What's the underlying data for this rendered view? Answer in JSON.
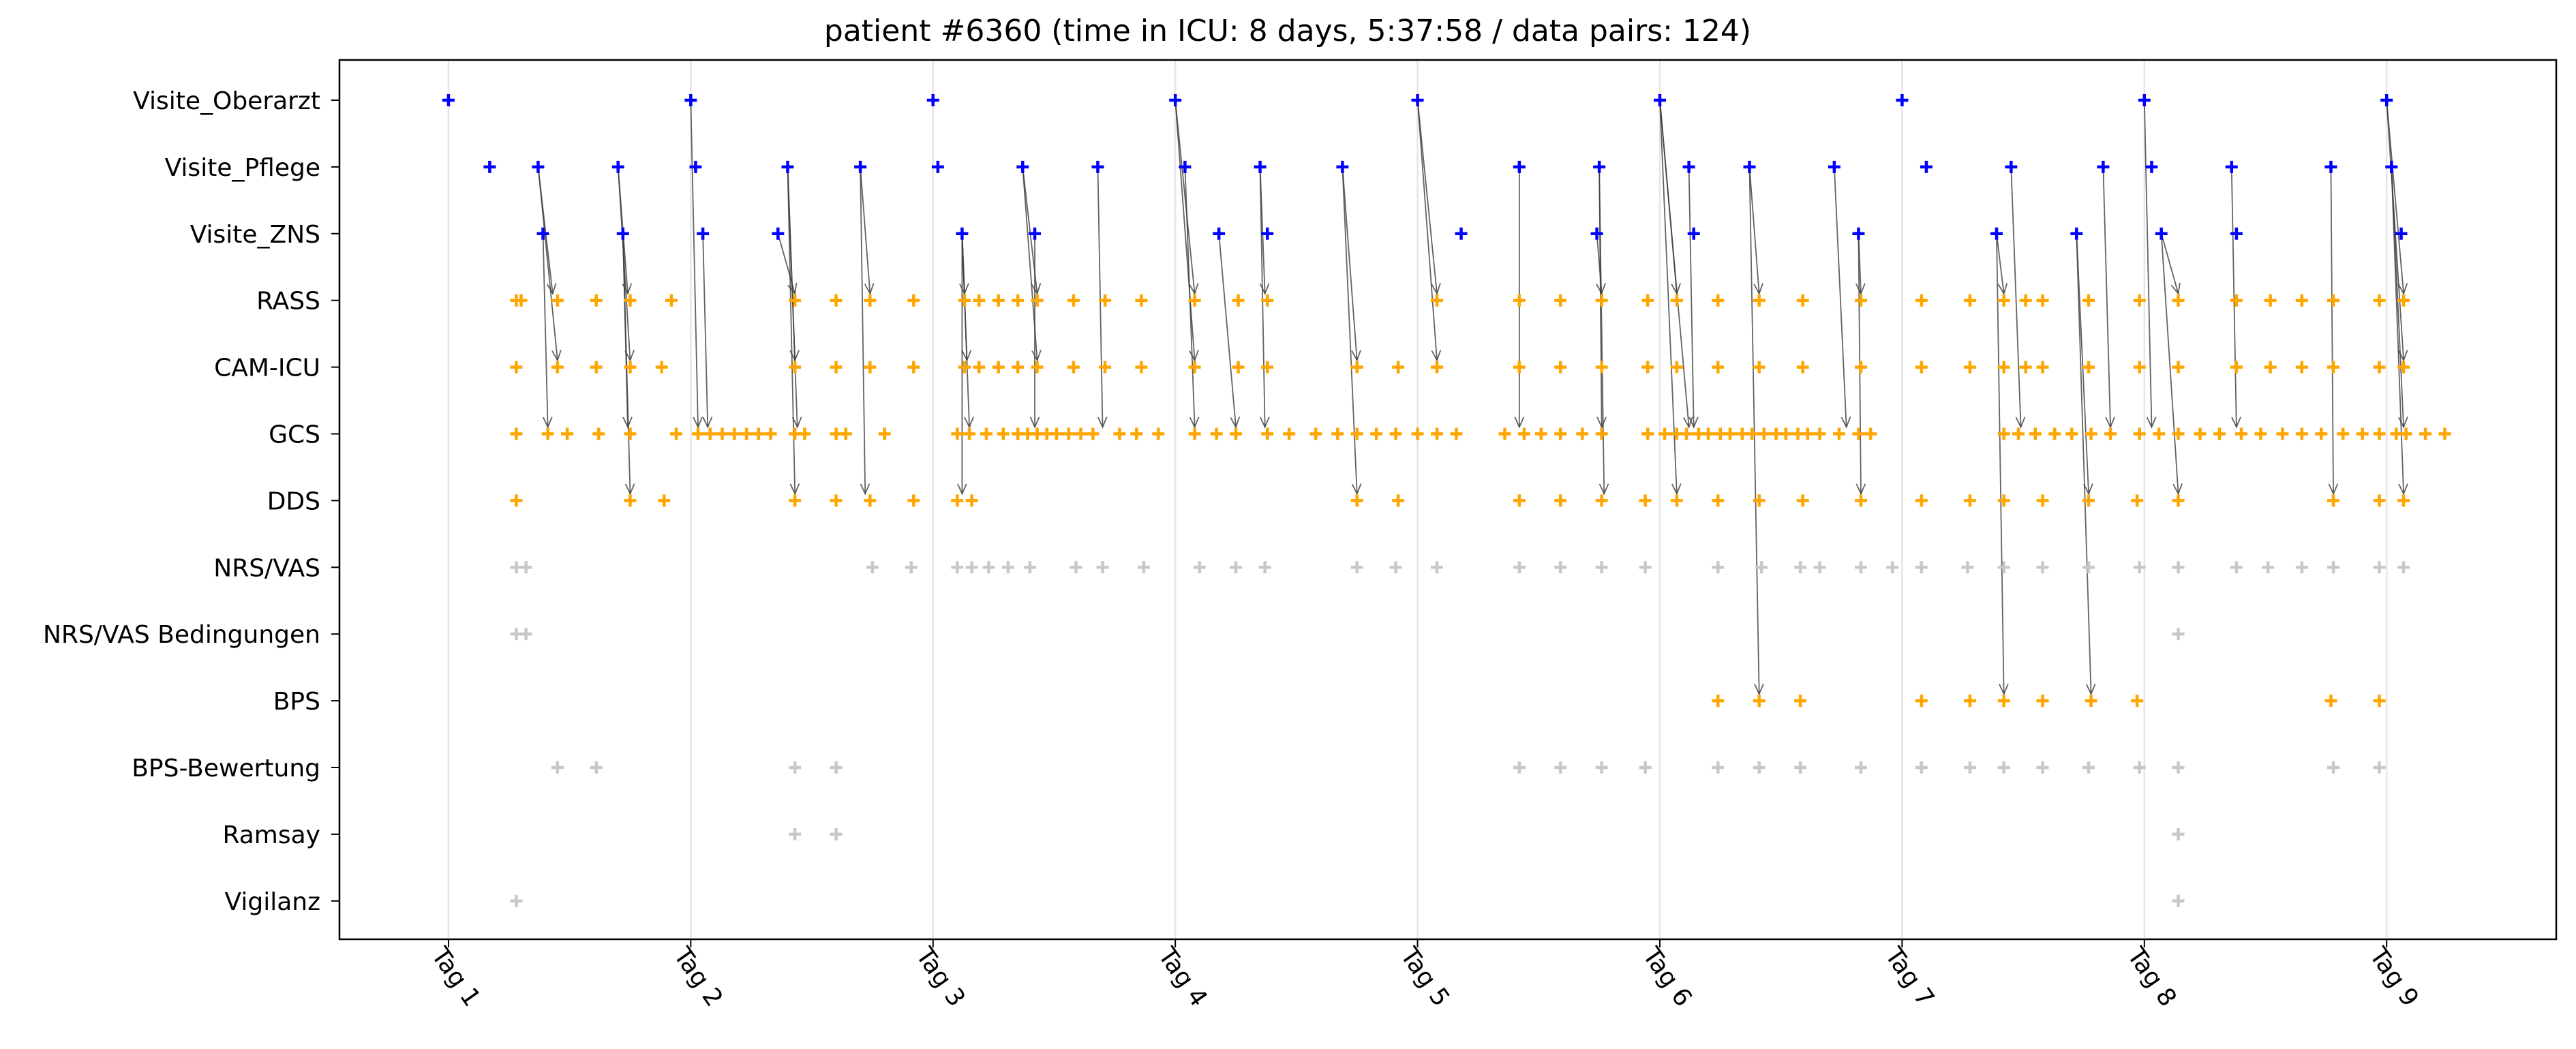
{
  "chart_data": {
    "type": "scatter",
    "title": "patient #6360 (time in ICU: 8 days, 5:37:58 / data pairs: 124)",
    "xlabel": "",
    "ylabel": "",
    "x_unit": "days",
    "xlim": [
      0.55,
      9.7
    ],
    "x_ticks": [
      {
        "x": 1,
        "label": "Tag 1"
      },
      {
        "x": 2,
        "label": "Tag 2"
      },
      {
        "x": 3,
        "label": "Tag 3"
      },
      {
        "x": 4,
        "label": "Tag 4"
      },
      {
        "x": 5,
        "label": "Tag 5"
      },
      {
        "x": 6,
        "label": "Tag 6"
      },
      {
        "x": 7,
        "label": "Tag 7"
      },
      {
        "x": 8,
        "label": "Tag 8"
      },
      {
        "x": 9,
        "label": "Tag 9"
      }
    ],
    "vertical_gridlines": true,
    "categories": [
      "Visite_Oberarzt",
      "Visite_Pflege",
      "Visite_ZNS",
      "RASS",
      "CAM-ICU",
      "GCS",
      "DDS",
      "NRS/VAS",
      "NRS/VAS Bedingungen",
      "BPS",
      "BPS-Bewertung",
      "Ramsay",
      "Vigilanz"
    ],
    "colors": {
      "visit": "#0000ff",
      "assessment": "#ffa500",
      "other": "#c8c8c8",
      "arrow": "#3c3c3c"
    },
    "series": [
      {
        "category": "Visite_Oberarzt",
        "color": "#0000ff",
        "x": [
          1.0,
          2.0,
          3.0,
          4.0,
          5.0,
          6.0,
          7.0,
          8.0,
          9.0
        ]
      },
      {
        "category": "Visite_Pflege",
        "color": "#0000ff",
        "x": [
          1.17,
          1.37,
          1.7,
          2.02,
          2.4,
          2.7,
          3.02,
          3.37,
          3.68,
          4.04,
          4.35,
          4.69,
          5.42,
          5.75,
          6.12,
          6.37,
          6.72,
          7.1,
          7.45,
          7.83,
          8.03,
          8.36,
          8.77,
          9.02
        ]
      },
      {
        "category": "Visite_ZNS",
        "color": "#0000ff",
        "x": [
          1.39,
          1.72,
          2.05,
          2.36,
          3.12,
          3.42,
          4.18,
          4.38,
          5.18,
          5.74,
          6.14,
          6.82,
          7.39,
          7.72,
          8.07,
          8.38,
          9.06
        ]
      },
      {
        "category": "RASS",
        "color": "#ffa500",
        "x": [
          1.28,
          1.3,
          1.45,
          1.61,
          1.75,
          1.92,
          2.43,
          2.6,
          2.74,
          2.92,
          3.13,
          3.19,
          3.27,
          3.35,
          3.43,
          3.58,
          3.71,
          3.86,
          4.08,
          4.26,
          4.38,
          5.08,
          5.42,
          5.59,
          5.76,
          5.95,
          6.07,
          6.24,
          6.41,
          6.59,
          6.83,
          7.08,
          7.28,
          7.42,
          7.51,
          7.58,
          7.77,
          7.98,
          8.14,
          8.38,
          8.52,
          8.65,
          8.78,
          8.97,
          9.07
        ]
      },
      {
        "category": "CAM-ICU",
        "color": "#ffa500",
        "x": [
          1.28,
          1.45,
          1.61,
          1.75,
          1.88,
          2.43,
          2.6,
          2.74,
          2.92,
          3.13,
          3.19,
          3.27,
          3.35,
          3.43,
          3.58,
          3.71,
          3.86,
          4.08,
          4.26,
          4.38,
          4.75,
          4.92,
          5.08,
          5.42,
          5.59,
          5.76,
          5.95,
          6.07,
          6.24,
          6.41,
          6.59,
          6.83,
          7.08,
          7.28,
          7.42,
          7.51,
          7.58,
          7.77,
          7.98,
          8.14,
          8.38,
          8.52,
          8.65,
          8.78,
          8.97,
          9.07
        ]
      },
      {
        "category": "GCS",
        "color": "#ffa500",
        "x": [
          1.28,
          1.41,
          1.49,
          1.62,
          1.75,
          1.94,
          2.03,
          2.08,
          2.13,
          2.18,
          2.23,
          2.28,
          2.33,
          2.43,
          2.47,
          2.6,
          2.64,
          2.8,
          3.1,
          3.15,
          3.22,
          3.29,
          3.35,
          3.39,
          3.43,
          3.47,
          3.51,
          3.56,
          3.61,
          3.66,
          3.77,
          3.84,
          3.93,
          4.08,
          4.17,
          4.25,
          4.38,
          4.47,
          4.58,
          4.67,
          4.75,
          4.83,
          4.91,
          5.0,
          5.08,
          5.16,
          5.36,
          5.44,
          5.51,
          5.59,
          5.68,
          5.76,
          5.95,
          6.02,
          6.07,
          6.11,
          6.16,
          6.2,
          6.25,
          6.29,
          6.34,
          6.38,
          6.43,
          6.48,
          6.52,
          6.57,
          6.61,
          6.66,
          6.74,
          6.82,
          6.87,
          7.42,
          7.48,
          7.55,
          7.63,
          7.7,
          7.78,
          7.86,
          7.98,
          8.06,
          8.14,
          8.23,
          8.31,
          8.4,
          8.48,
          8.57,
          8.65,
          8.73,
          8.82,
          8.9,
          8.97,
          9.04,
          9.08,
          9.16,
          9.24
        ]
      },
      {
        "category": "DDS",
        "color": "#ffa500",
        "x": [
          1.28,
          1.75,
          1.89,
          2.43,
          2.6,
          2.74,
          2.92,
          3.1,
          3.16,
          4.75,
          4.92,
          5.42,
          5.59,
          5.76,
          5.94,
          6.07,
          6.24,
          6.41,
          6.59,
          6.83,
          7.08,
          7.28,
          7.42,
          7.58,
          7.77,
          7.97,
          8.14,
          8.78,
          8.97,
          9.07
        ]
      },
      {
        "category": "NRS/VAS",
        "color": "#c8c8c8",
        "x": [
          1.28,
          1.32,
          2.75,
          2.91,
          3.1,
          3.16,
          3.23,
          3.31,
          3.4,
          3.59,
          3.7,
          3.87,
          4.1,
          4.25,
          4.37,
          4.75,
          4.91,
          5.08,
          5.42,
          5.59,
          5.76,
          5.94,
          6.24,
          6.42,
          6.58,
          6.66,
          6.83,
          6.96,
          7.08,
          7.27,
          7.42,
          7.58,
          7.77,
          7.98,
          8.14,
          8.38,
          8.51,
          8.65,
          8.78,
          8.97,
          9.07
        ]
      },
      {
        "category": "NRS/VAS Bedingungen",
        "color": "#c8c8c8",
        "x": [
          1.28,
          1.32,
          8.14
        ]
      },
      {
        "category": "BPS",
        "color": "#ffa500",
        "x": [
          6.24,
          6.41,
          6.58,
          7.08,
          7.28,
          7.42,
          7.58,
          7.78,
          7.97,
          8.77,
          8.97
        ]
      },
      {
        "category": "BPS-Bewertung",
        "color": "#c8c8c8",
        "x": [
          1.45,
          1.61,
          2.43,
          2.6,
          5.42,
          5.59,
          5.76,
          5.94,
          6.24,
          6.41,
          6.58,
          6.83,
          7.08,
          7.28,
          7.42,
          7.58,
          7.77,
          7.98,
          8.14,
          8.78,
          8.97
        ]
      },
      {
        "category": "Ramsay",
        "color": "#c8c8c8",
        "x": [
          2.43,
          2.6,
          8.14
        ]
      },
      {
        "category": "Vigilanz",
        "color": "#c8c8c8",
        "x": [
          1.28,
          8.14
        ]
      }
    ],
    "arrows": [
      {
        "from": {
          "x": 1.37,
          "cat": "Visite_Pflege"
        },
        "to": {
          "x": 1.43,
          "cat": "RASS"
        }
      },
      {
        "from": {
          "x": 1.37,
          "cat": "Visite_Pflege"
        },
        "to": {
          "x": 1.45,
          "cat": "CAM-ICU"
        }
      },
      {
        "from": {
          "x": 1.39,
          "cat": "Visite_ZNS"
        },
        "to": {
          "x": 1.41,
          "cat": "GCS"
        }
      },
      {
        "from": {
          "x": 1.7,
          "cat": "Visite_Pflege"
        },
        "to": {
          "x": 1.74,
          "cat": "RASS"
        }
      },
      {
        "from": {
          "x": 1.7,
          "cat": "Visite_Pflege"
        },
        "to": {
          "x": 1.75,
          "cat": "CAM-ICU"
        }
      },
      {
        "from": {
          "x": 1.72,
          "cat": "Visite_ZNS"
        },
        "to": {
          "x": 1.74,
          "cat": "GCS"
        }
      },
      {
        "from": {
          "x": 1.72,
          "cat": "Visite_ZNS"
        },
        "to": {
          "x": 1.75,
          "cat": "DDS"
        }
      },
      {
        "from": {
          "x": 2.0,
          "cat": "Visite_Oberarzt"
        },
        "to": {
          "x": 2.03,
          "cat": "GCS"
        }
      },
      {
        "from": {
          "x": 2.05,
          "cat": "Visite_ZNS"
        },
        "to": {
          "x": 2.07,
          "cat": "GCS"
        }
      },
      {
        "from": {
          "x": 2.36,
          "cat": "Visite_ZNS"
        },
        "to": {
          "x": 2.43,
          "cat": "RASS"
        }
      },
      {
        "from": {
          "x": 2.4,
          "cat": "Visite_Pflege"
        },
        "to": {
          "x": 2.43,
          "cat": "CAM-ICU"
        }
      },
      {
        "from": {
          "x": 2.4,
          "cat": "Visite_Pflege"
        },
        "to": {
          "x": 2.44,
          "cat": "GCS"
        }
      },
      {
        "from": {
          "x": 2.4,
          "cat": "Visite_Pflege"
        },
        "to": {
          "x": 2.43,
          "cat": "DDS"
        }
      },
      {
        "from": {
          "x": 2.7,
          "cat": "Visite_Pflege"
        },
        "to": {
          "x": 2.74,
          "cat": "RASS"
        }
      },
      {
        "from": {
          "x": 2.7,
          "cat": "Visite_Pflege"
        },
        "to": {
          "x": 2.72,
          "cat": "DDS"
        }
      },
      {
        "from": {
          "x": 3.12,
          "cat": "Visite_ZNS"
        },
        "to": {
          "x": 3.13,
          "cat": "RASS"
        }
      },
      {
        "from": {
          "x": 3.12,
          "cat": "Visite_ZNS"
        },
        "to": {
          "x": 3.14,
          "cat": "CAM-ICU"
        }
      },
      {
        "from": {
          "x": 3.12,
          "cat": "Visite_ZNS"
        },
        "to": {
          "x": 3.15,
          "cat": "GCS"
        }
      },
      {
        "from": {
          "x": 3.12,
          "cat": "Visite_ZNS"
        },
        "to": {
          "x": 3.12,
          "cat": "DDS"
        }
      },
      {
        "from": {
          "x": 3.37,
          "cat": "Visite_Pflege"
        },
        "to": {
          "x": 3.43,
          "cat": "RASS"
        }
      },
      {
        "from": {
          "x": 3.37,
          "cat": "Visite_Pflege"
        },
        "to": {
          "x": 3.43,
          "cat": "CAM-ICU"
        }
      },
      {
        "from": {
          "x": 3.42,
          "cat": "Visite_ZNS"
        },
        "to": {
          "x": 3.42,
          "cat": "GCS"
        }
      },
      {
        "from": {
          "x": 3.68,
          "cat": "Visite_Pflege"
        },
        "to": {
          "x": 3.7,
          "cat": "GCS"
        }
      },
      {
        "from": {
          "x": 4.0,
          "cat": "Visite_Oberarzt"
        },
        "to": {
          "x": 4.08,
          "cat": "RASS"
        }
      },
      {
        "from": {
          "x": 4.0,
          "cat": "Visite_Oberarzt"
        },
        "to": {
          "x": 4.08,
          "cat": "CAM-ICU"
        }
      },
      {
        "from": {
          "x": 4.04,
          "cat": "Visite_Pflege"
        },
        "to": {
          "x": 4.08,
          "cat": "GCS"
        }
      },
      {
        "from": {
          "x": 4.18,
          "cat": "Visite_ZNS"
        },
        "to": {
          "x": 4.25,
          "cat": "GCS"
        }
      },
      {
        "from": {
          "x": 4.35,
          "cat": "Visite_Pflege"
        },
        "to": {
          "x": 4.37,
          "cat": "RASS"
        }
      },
      {
        "from": {
          "x": 4.35,
          "cat": "Visite_Pflege"
        },
        "to": {
          "x": 4.37,
          "cat": "GCS"
        }
      },
      {
        "from": {
          "x": 4.69,
          "cat": "Visite_Pflege"
        },
        "to": {
          "x": 4.75,
          "cat": "CAM-ICU"
        }
      },
      {
        "from": {
          "x": 4.69,
          "cat": "Visite_Pflege"
        },
        "to": {
          "x": 4.75,
          "cat": "DDS"
        }
      },
      {
        "from": {
          "x": 5.0,
          "cat": "Visite_Oberarzt"
        },
        "to": {
          "x": 5.08,
          "cat": "RASS"
        }
      },
      {
        "from": {
          "x": 5.0,
          "cat": "Visite_Oberarzt"
        },
        "to": {
          "x": 5.08,
          "cat": "CAM-ICU"
        }
      },
      {
        "from": {
          "x": 5.42,
          "cat": "Visite_Pflege"
        },
        "to": {
          "x": 5.42,
          "cat": "GCS"
        }
      },
      {
        "from": {
          "x": 5.74,
          "cat": "Visite_ZNS"
        },
        "to": {
          "x": 5.76,
          "cat": "RASS"
        }
      },
      {
        "from": {
          "x": 5.75,
          "cat": "Visite_Pflege"
        },
        "to": {
          "x": 5.76,
          "cat": "GCS"
        }
      },
      {
        "from": {
          "x": 5.75,
          "cat": "Visite_Pflege"
        },
        "to": {
          "x": 5.77,
          "cat": "DDS"
        }
      },
      {
        "from": {
          "x": 6.0,
          "cat": "Visite_Oberarzt"
        },
        "to": {
          "x": 6.07,
          "cat": "RASS"
        }
      },
      {
        "from": {
          "x": 6.0,
          "cat": "Visite_Oberarzt"
        },
        "to": {
          "x": 6.07,
          "cat": "DDS"
        }
      },
      {
        "from": {
          "x": 6.0,
          "cat": "Visite_Oberarzt"
        },
        "to": {
          "x": 6.12,
          "cat": "GCS"
        }
      },
      {
        "from": {
          "x": 6.12,
          "cat": "Visite_Pflege"
        },
        "to": {
          "x": 6.14,
          "cat": "GCS"
        }
      },
      {
        "from": {
          "x": 6.37,
          "cat": "Visite_Pflege"
        },
        "to": {
          "x": 6.41,
          "cat": "RASS"
        }
      },
      {
        "from": {
          "x": 6.37,
          "cat": "Visite_Pflege"
        },
        "to": {
          "x": 6.41,
          "cat": "BPS"
        }
      },
      {
        "from": {
          "x": 6.72,
          "cat": "Visite_Pflege"
        },
        "to": {
          "x": 6.77,
          "cat": "GCS"
        }
      },
      {
        "from": {
          "x": 6.82,
          "cat": "Visite_ZNS"
        },
        "to": {
          "x": 6.83,
          "cat": "RASS"
        }
      },
      {
        "from": {
          "x": 6.82,
          "cat": "Visite_ZNS"
        },
        "to": {
          "x": 6.83,
          "cat": "DDS"
        }
      },
      {
        "from": {
          "x": 7.39,
          "cat": "Visite_ZNS"
        },
        "to": {
          "x": 7.42,
          "cat": "RASS"
        }
      },
      {
        "from": {
          "x": 7.39,
          "cat": "Visite_ZNS"
        },
        "to": {
          "x": 7.42,
          "cat": "BPS"
        }
      },
      {
        "from": {
          "x": 7.45,
          "cat": "Visite_Pflege"
        },
        "to": {
          "x": 7.49,
          "cat": "GCS"
        }
      },
      {
        "from": {
          "x": 7.72,
          "cat": "Visite_ZNS"
        },
        "to": {
          "x": 7.78,
          "cat": "BPS"
        }
      },
      {
        "from": {
          "x": 7.72,
          "cat": "Visite_ZNS"
        },
        "to": {
          "x": 7.77,
          "cat": "DDS"
        }
      },
      {
        "from": {
          "x": 7.83,
          "cat": "Visite_Pflege"
        },
        "to": {
          "x": 7.86,
          "cat": "GCS"
        }
      },
      {
        "from": {
          "x": 8.0,
          "cat": "Visite_Oberarzt"
        },
        "to": {
          "x": 8.03,
          "cat": "GCS"
        }
      },
      {
        "from": {
          "x": 8.07,
          "cat": "Visite_ZNS"
        },
        "to": {
          "x": 8.14,
          "cat": "RASS"
        }
      },
      {
        "from": {
          "x": 8.07,
          "cat": "Visite_ZNS"
        },
        "to": {
          "x": 8.14,
          "cat": "DDS"
        }
      },
      {
        "from": {
          "x": 8.36,
          "cat": "Visite_Pflege"
        },
        "to": {
          "x": 8.38,
          "cat": "GCS"
        }
      },
      {
        "from": {
          "x": 8.77,
          "cat": "Visite_Pflege"
        },
        "to": {
          "x": 8.78,
          "cat": "DDS"
        }
      },
      {
        "from": {
          "x": 9.0,
          "cat": "Visite_Oberarzt"
        },
        "to": {
          "x": 9.07,
          "cat": "RASS"
        }
      },
      {
        "from": {
          "x": 9.0,
          "cat": "Visite_Oberarzt"
        },
        "to": {
          "x": 9.07,
          "cat": "CAM-ICU"
        }
      },
      {
        "from": {
          "x": 9.02,
          "cat": "Visite_Pflege"
        },
        "to": {
          "x": 9.07,
          "cat": "GCS"
        }
      },
      {
        "from": {
          "x": 9.02,
          "cat": "Visite_Pflege"
        },
        "to": {
          "x": 9.07,
          "cat": "DDS"
        }
      }
    ]
  }
}
